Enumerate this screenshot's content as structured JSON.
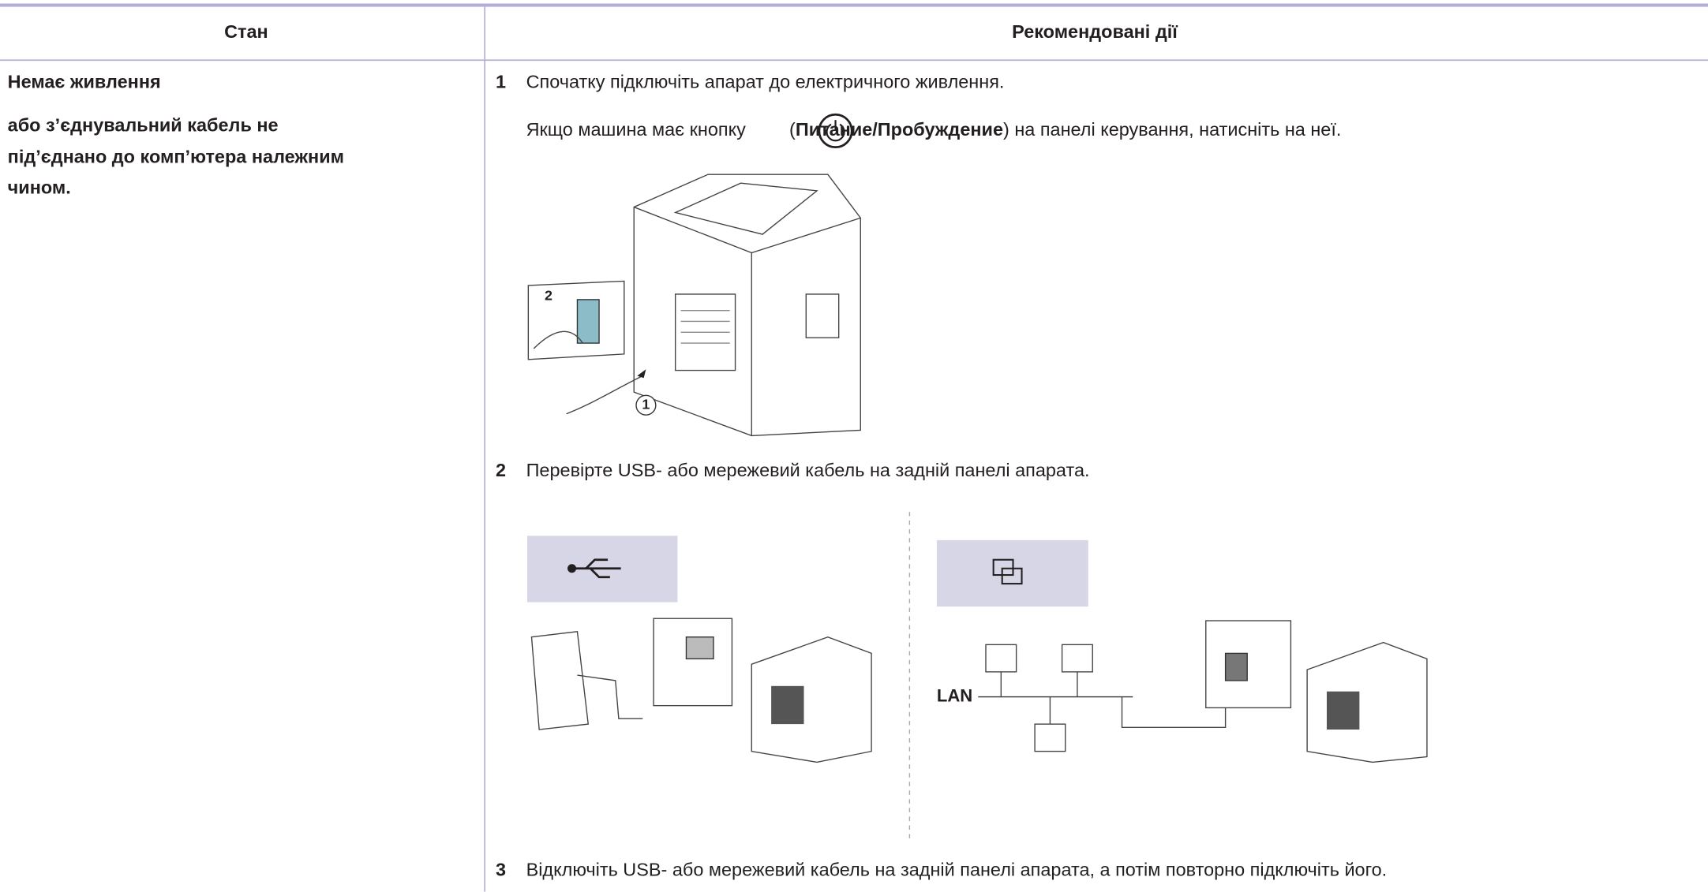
{
  "table": {
    "header": [
      "Стан",
      "Рекомендовані дії"
    ],
    "rows": [
      {
        "condition": [
          "Немає живлення",
          "або з’єднувальний кабель не",
          "під’єднано до комп’ютера належним",
          "чином."
        ],
        "steps": [
          {
            "number": "1",
            "text": "Спочатку підключіть апарат до електричного живлення.",
            "note": {
              "before": "Якщо машина має кнопку",
              "open": "(",
              "bold": "Питание/Пробуждение",
              "after": ") на панелі керування, натисніть на неї."
            },
            "figure_labels": [
              "2",
              "1"
            ]
          },
          {
            "number": "2",
            "text": "Перевірте USB- або мережевий кабель на задній панелі апарата.",
            "figure_labels": [
              "LAN"
            ]
          },
          {
            "number": "3",
            "text": "Відключіть USB- або мережевий кабель на задній панелі апарата, а потім повторно підключіть його."
          }
        ]
      }
    ]
  }
}
